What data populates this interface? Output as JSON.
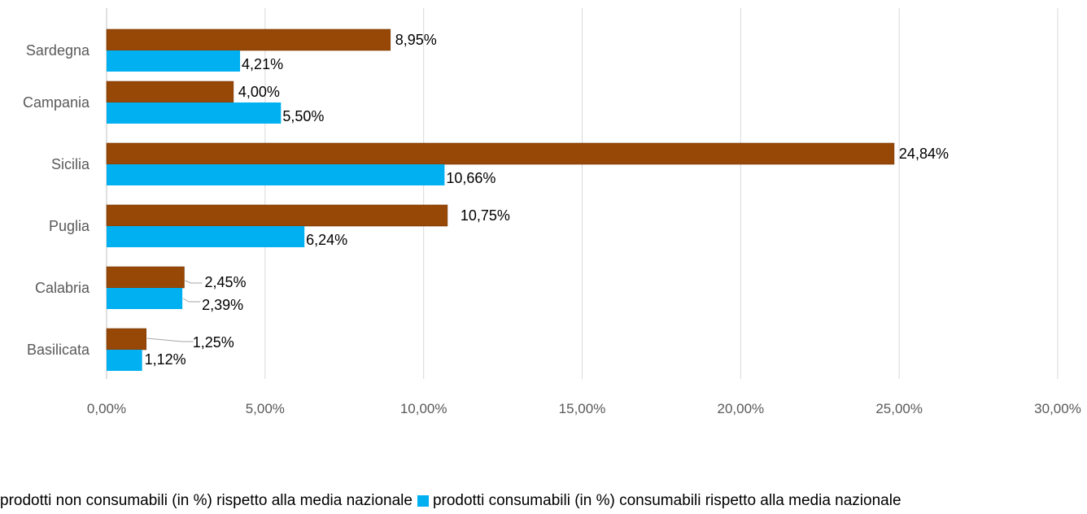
{
  "chart_data": {
    "type": "bar",
    "orientation": "horizontal",
    "categories": [
      "Sardegna",
      "Campania",
      "Sicilia",
      "Puglia",
      "Calabria",
      "Basilicata"
    ],
    "series": [
      {
        "name": "prodotti non consumabili  (in %) rispetto alla media nazionale",
        "values": [
          8.95,
          4.0,
          24.84,
          10.75,
          2.45,
          1.25
        ],
        "labels": [
          "8,95%",
          "4,00%",
          "24,84%",
          "10,75%",
          "2,45%",
          "1,25%"
        ],
        "color": "#974706"
      },
      {
        "name": "prodotti consumabili  (in %) consumabili rispetto alla media nazionale",
        "values": [
          4.21,
          5.5,
          10.66,
          6.24,
          2.39,
          1.12
        ],
        "labels": [
          "4,21%",
          "5,50%",
          "10,66%",
          "6,24%",
          "2,39%",
          "1,12%"
        ],
        "color": "#00B0F0"
      }
    ],
    "xlim": [
      0,
      30
    ],
    "xticks": [
      0,
      5,
      10,
      15,
      20,
      25,
      30
    ],
    "xtick_labels": [
      "0,00%",
      "5,00%",
      "10,00%",
      "15,00%",
      "20,00%",
      "25,00%",
      "30,00%"
    ],
    "grid": "vertical",
    "legend_position": "bottom",
    "title": "",
    "xlabel": "",
    "ylabel": ""
  }
}
